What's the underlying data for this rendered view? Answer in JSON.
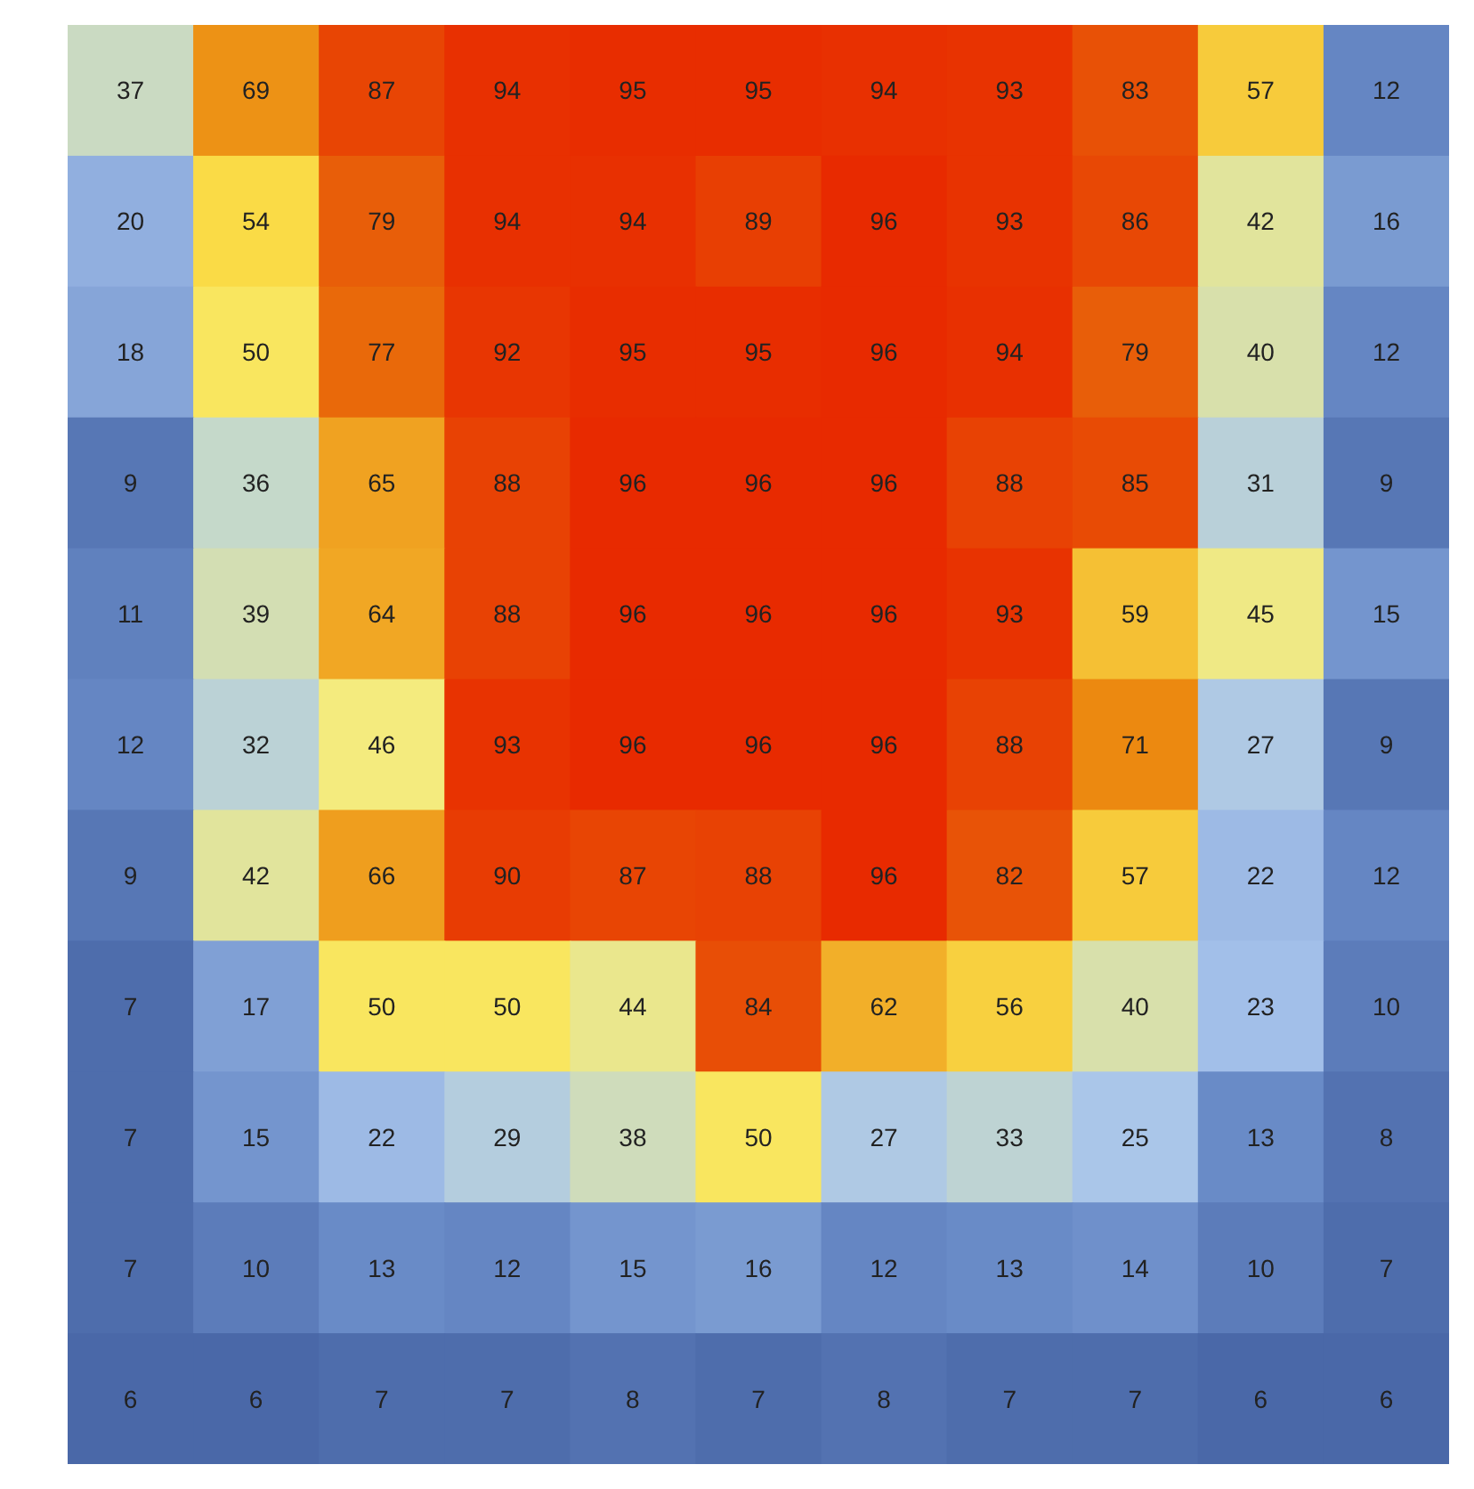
{
  "chart_data": {
    "type": "heatmap",
    "categories": [
      null,
      null,
      null,
      null,
      null,
      null,
      null,
      null,
      null,
      null,
      null
    ],
    "y_categories": [
      null,
      null,
      null,
      null,
      null,
      null,
      null,
      null,
      null,
      null,
      null
    ],
    "cells": [
      [
        37,
        69,
        87,
        94,
        95,
        95,
        94,
        93,
        83,
        57,
        12
      ],
      [
        20,
        54,
        79,
        94,
        94,
        89,
        96,
        93,
        86,
        42,
        16
      ],
      [
        18,
        50,
        77,
        92,
        95,
        95,
        96,
        94,
        79,
        40,
        12
      ],
      [
        9,
        36,
        65,
        88,
        96,
        96,
        96,
        88,
        85,
        31,
        9
      ],
      [
        11,
        39,
        64,
        88,
        96,
        96,
        96,
        93,
        59,
        45,
        15
      ],
      [
        12,
        32,
        46,
        93,
        96,
        96,
        96,
        88,
        71,
        27,
        9
      ],
      [
        9,
        42,
        66,
        90,
        87,
        88,
        96,
        82,
        57,
        22,
        12
      ],
      [
        7,
        17,
        50,
        50,
        44,
        84,
        62,
        56,
        40,
        23,
        10
      ],
      [
        7,
        15,
        22,
        29,
        38,
        50,
        27,
        33,
        25,
        13,
        8
      ],
      [
        7,
        10,
        13,
        12,
        15,
        16,
        12,
        13,
        14,
        10,
        7
      ],
      [
        6,
        6,
        7,
        7,
        8,
        7,
        8,
        7,
        7,
        6,
        6
      ]
    ],
    "data_labels": true
  }
}
